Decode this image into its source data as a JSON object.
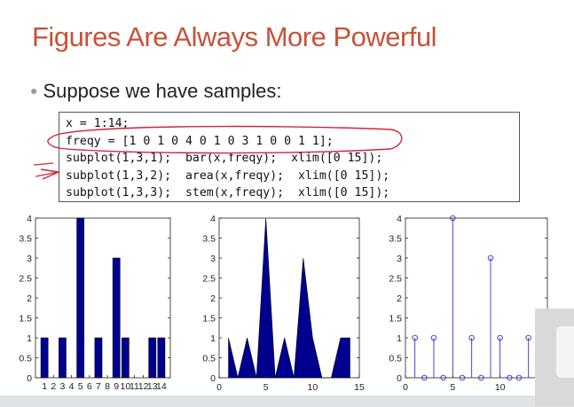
{
  "slide": {
    "title": "Figures Are Always More Powerful",
    "bullet": "Suppose we have samples:"
  },
  "code": {
    "lines": [
      "x = 1:14;",
      "freqy = [1 0 1 0 4 0 1 0 3 1 0 0 1 1];",
      "subplot(1,3,1);  bar(x,freqy);  xlim([0 15]);",
      "subplot(1,3,2);  area(x,freqy);  xlim([0 15]);",
      "subplot(1,3,3);  stem(x,freqy);  xlim([0 15]);"
    ]
  },
  "colors": {
    "title": "#c8523a",
    "bar_fill": "#00008f",
    "stem": "#3333cc",
    "annotation": "#d0263a"
  },
  "chart_data": [
    {
      "type": "bar",
      "categories": [
        "1",
        "2",
        "3",
        "4",
        "5",
        "6",
        "7",
        "8",
        "9",
        "10",
        "11",
        "12",
        "13",
        "14"
      ],
      "x": [
        1,
        2,
        3,
        4,
        5,
        6,
        7,
        8,
        9,
        10,
        11,
        12,
        13,
        14
      ],
      "values": [
        1,
        0,
        1,
        0,
        4,
        0,
        1,
        0,
        3,
        1,
        0,
        0,
        1,
        1
      ],
      "xlim": [
        0,
        15
      ],
      "ylim": [
        0,
        4
      ],
      "yticks": [
        "0",
        "0.5",
        "1",
        "1.5",
        "2",
        "2.5",
        "3",
        "3.5",
        "4"
      ],
      "xtick_labels": [
        "1",
        "2",
        "3",
        "4",
        "5",
        "6",
        "7",
        "8",
        "9",
        "10",
        "11",
        "12",
        "13",
        "14"
      ]
    },
    {
      "type": "area",
      "x": [
        1,
        2,
        3,
        4,
        5,
        6,
        7,
        8,
        9,
        10,
        11,
        12,
        13,
        14
      ],
      "values": [
        1,
        0,
        1,
        0,
        4,
        0,
        1,
        0,
        3,
        1,
        0,
        0,
        1,
        1
      ],
      "xlim": [
        0,
        15
      ],
      "ylim": [
        0,
        4
      ],
      "xticks": [
        0,
        5,
        10,
        15
      ],
      "xtick_labels": [
        "0",
        "5",
        "10",
        "15"
      ],
      "yticks": [
        "0",
        "0.5",
        "1",
        "1.5",
        "2",
        "2.5",
        "3",
        "3.5",
        "4"
      ]
    },
    {
      "type": "stem",
      "x": [
        1,
        2,
        3,
        4,
        5,
        6,
        7,
        8,
        9,
        10,
        11,
        12,
        13,
        14
      ],
      "values": [
        1,
        0,
        1,
        0,
        4,
        0,
        1,
        0,
        3,
        1,
        0,
        0,
        1,
        1
      ],
      "xlim": [
        0,
        15
      ],
      "ylim": [
        0,
        4
      ],
      "xticks": [
        0,
        5,
        10
      ],
      "xtick_labels": [
        "0",
        "5",
        "10"
      ],
      "yticks": [
        "0",
        "0.5",
        "1",
        "1.5",
        "2",
        "2.5",
        "3",
        "3.5",
        "4"
      ]
    }
  ]
}
